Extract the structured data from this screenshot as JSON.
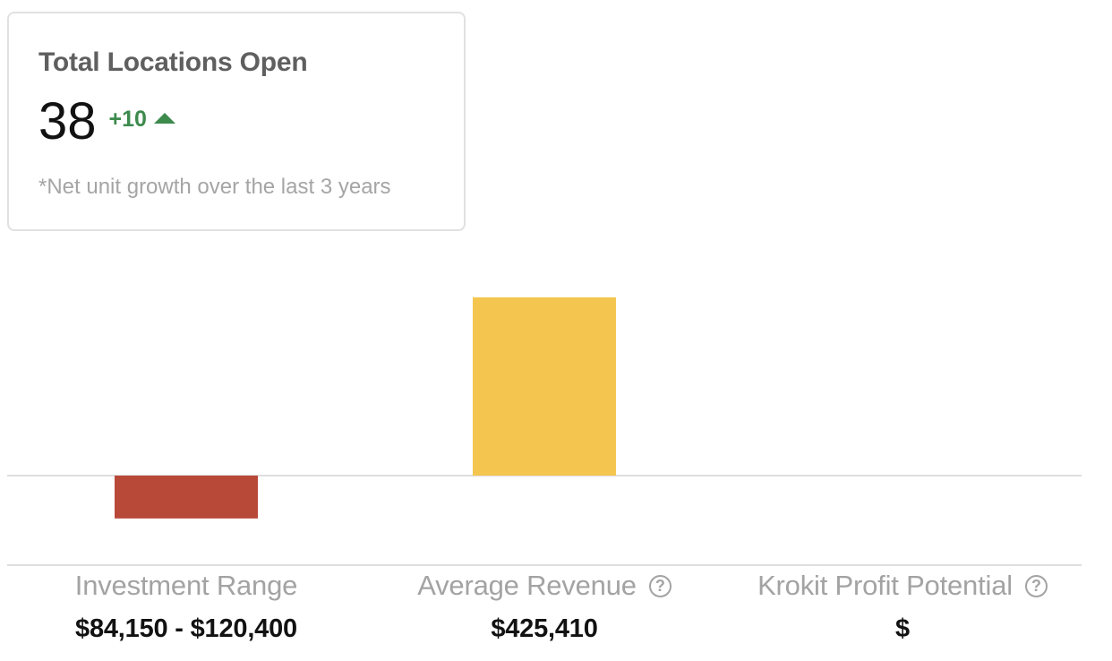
{
  "stat_card": {
    "title": "Total Locations Open",
    "value": "38",
    "delta": "+10",
    "delta_icon": "up-arrow-icon",
    "footnote": "*Net unit growth over the last 3 years",
    "accent": "#3d8a4d"
  },
  "metrics": [
    {
      "label": "Investment Range",
      "value": "$84,150 - $120,400",
      "help_icon": false
    },
    {
      "label": "Average Revenue",
      "value": "$425,410",
      "help_icon": true,
      "help_glyph": "?"
    },
    {
      "label": "Krokit Profit Potential",
      "value": "$",
      "help_icon": true,
      "help_glyph": "?"
    }
  ],
  "chart_data": {
    "type": "bar",
    "categories": [
      "Investment Range",
      "Average Revenue",
      "Krokit Profit Potential"
    ],
    "values": [
      -102275,
      425410,
      0
    ],
    "colors": [
      "#b84838",
      "#f4c650",
      "#f4c650"
    ],
    "ylim": [
      -212705,
      425410
    ],
    "grid": false,
    "baseline_color": "#d3d3d3"
  }
}
